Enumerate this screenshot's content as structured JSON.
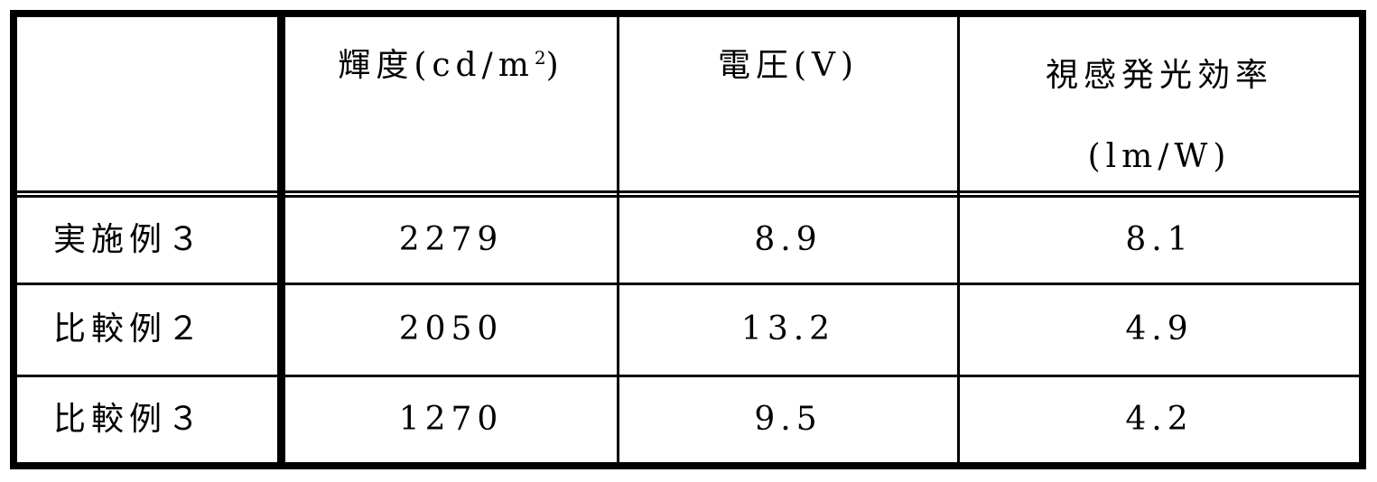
{
  "table": {
    "headers": [
      "",
      {
        "text": "輝度(cd/m",
        "sup": "2",
        "suffix": ")"
      },
      "電圧(V)",
      {
        "line1": "視感発光効率",
        "line2": "(lm/W)"
      }
    ],
    "rows": [
      {
        "label": "実施例３",
        "luminance": "2279",
        "voltage": "8.9",
        "efficacy": "8.1"
      },
      {
        "label": "比較例２",
        "luminance": "2050",
        "voltage": "13.2",
        "efficacy": "4.9"
      },
      {
        "label": "比較例３",
        "luminance": "1270",
        "voltage": "9.5",
        "efficacy": "4.2"
      }
    ]
  }
}
